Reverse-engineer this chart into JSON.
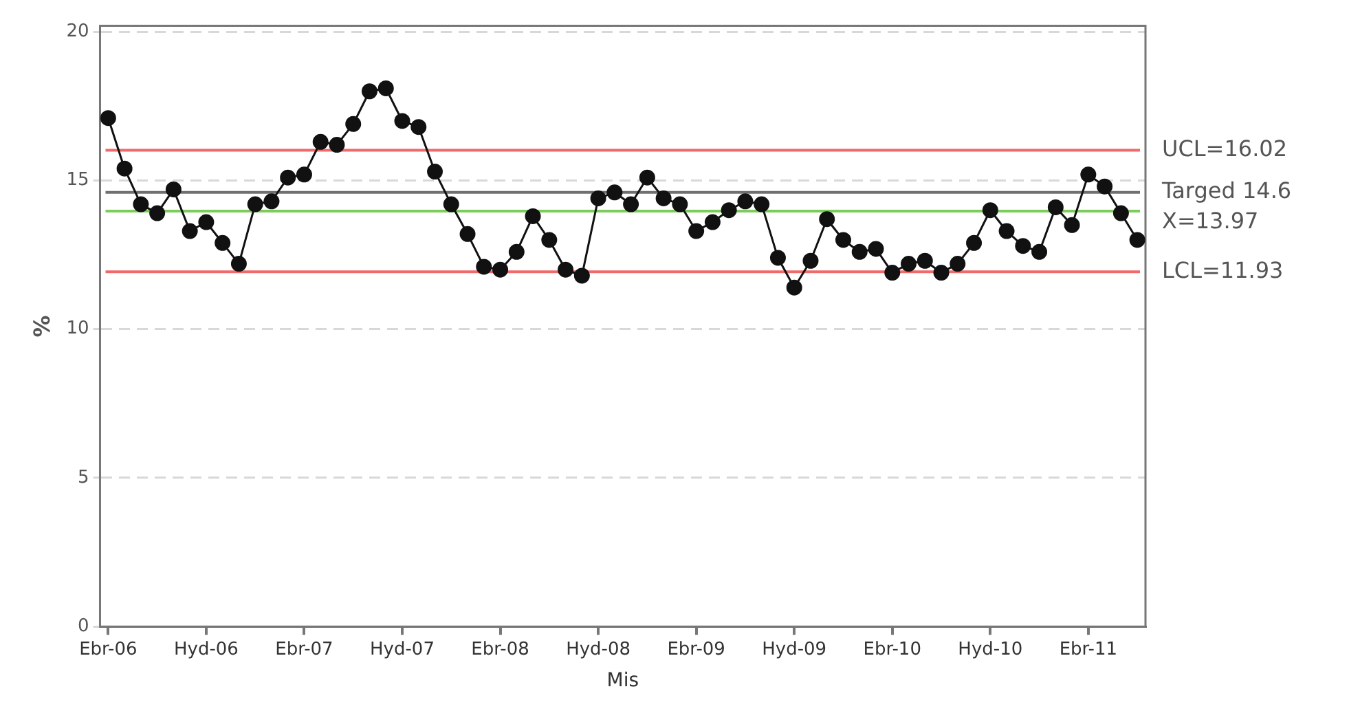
{
  "chart_data": {
    "type": "line",
    "xlabel": "Mis",
    "ylabel": "%",
    "categories": [
      "Ebr-06",
      null,
      null,
      null,
      null,
      null,
      "Hyd-06",
      null,
      null,
      null,
      null,
      null,
      "Ebr-07",
      null,
      null,
      null,
      null,
      null,
      "Hyd-07",
      null,
      null,
      null,
      null,
      null,
      "Ebr-08",
      null,
      null,
      null,
      null,
      null,
      "Hyd-08",
      null,
      null,
      null,
      null,
      null,
      "Ebr-09",
      null,
      null,
      null,
      null,
      null,
      "Hyd-09",
      null,
      null,
      null,
      null,
      null,
      "Ebr-10",
      null,
      null,
      null,
      null,
      null,
      "Hyd-10",
      null,
      null,
      null,
      null,
      null,
      "Ebr-11",
      null,
      null,
      null
    ],
    "series": [
      {
        "color": "#111111",
        "values": [
          17.1,
          15.4,
          14.2,
          13.9,
          14.7,
          13.3,
          13.6,
          12.9,
          12.2,
          14.2,
          14.3,
          15.1,
          15.2,
          16.3,
          16.2,
          16.9,
          18.0,
          18.1,
          17.0,
          16.8,
          15.3,
          14.2,
          13.2,
          12.1,
          12.0,
          12.6,
          13.8,
          13.0,
          12.0,
          11.8,
          14.4,
          14.6,
          14.2,
          15.1,
          14.4,
          14.2,
          13.3,
          13.6,
          14.0,
          14.3,
          14.2,
          12.4,
          11.4,
          12.3,
          13.7,
          13.0,
          12.6,
          12.7,
          11.9,
          12.2,
          12.3,
          11.9,
          12.2,
          12.9,
          14.0,
          13.3,
          12.8,
          12.6,
          14.1,
          13.5,
          15.2,
          14.8,
          13.9,
          13.0
        ]
      }
    ],
    "ylim": [
      0,
      20.2
    ],
    "yticks": [
      0,
      5,
      10,
      15,
      20
    ],
    "grid": "y",
    "legend": false,
    "marker": "circle",
    "line_style": "solid",
    "ref_lines": [
      {
        "axis": "y",
        "value": 16.02,
        "label": "UCL=16.02",
        "color": "#f06a6a"
      },
      {
        "axis": "y",
        "value": 14.6,
        "label": "Targed 14.6",
        "color": "#707070"
      },
      {
        "axis": "y",
        "value": 13.97,
        "label": "X=13.97",
        "color": "#7ccc5c"
      },
      {
        "axis": "y",
        "value": 11.93,
        "label": "LCL=11.93",
        "color": "#f06a6a"
      }
    ]
  }
}
